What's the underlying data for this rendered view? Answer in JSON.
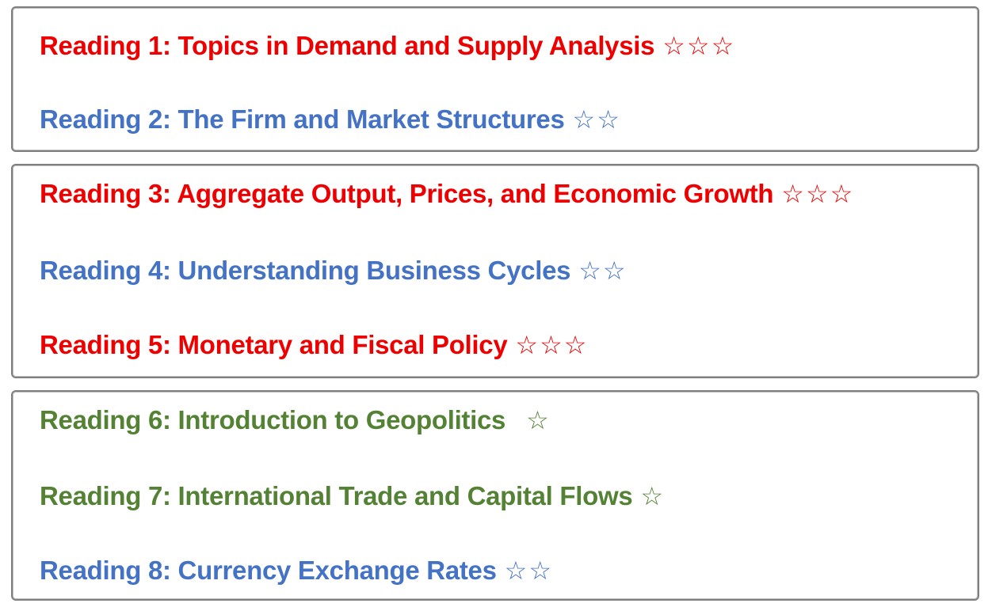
{
  "colors": {
    "red": "#ee0000",
    "blue": "#4472c4",
    "green": "#548235"
  },
  "groups": [
    {
      "readings": [
        {
          "title": "Reading 1: Topics in Demand and Supply Analysis",
          "stars": "☆☆☆",
          "star_count": 3,
          "color": "red"
        },
        {
          "title": "Reading 2: The Firm and Market Structures",
          "stars": "☆☆",
          "star_count": 2,
          "color": "blue"
        }
      ]
    },
    {
      "readings": [
        {
          "title": "Reading 3: Aggregate Output, Prices, and Economic Growth",
          "stars": "☆☆☆",
          "star_count": 3,
          "color": "red"
        },
        {
          "title": "Reading 4: Understanding Business Cycles",
          "stars": "☆☆",
          "star_count": 2,
          "color": "blue"
        },
        {
          "title": "Reading 5: Monetary and Fiscal Policy",
          "stars": "☆☆☆",
          "star_count": 3,
          "color": "red"
        }
      ]
    },
    {
      "readings": [
        {
          "title": "Reading 6: Introduction to Geopolitics",
          "stars": "☆",
          "star_count": 1,
          "color": "green"
        },
        {
          "title": "Reading 7: International Trade and Capital Flows",
          "stars": "☆",
          "star_count": 1,
          "color": "green"
        },
        {
          "title": "Reading 8: Currency Exchange Rates",
          "stars": "☆☆",
          "star_count": 2,
          "color": "blue"
        }
      ]
    }
  ]
}
